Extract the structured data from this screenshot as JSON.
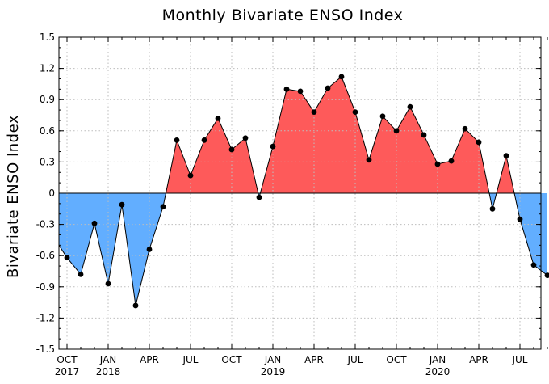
{
  "chart_data": {
    "type": "area",
    "title": "Monthly Bivariate ENSO Index",
    "ylabel": "Bivariate ENSO Index",
    "xlabel": "",
    "ylim": [
      -1.5,
      1.5
    ],
    "yticks": [
      "1.5",
      "1.2",
      "0.9",
      "0.6",
      "0.3",
      "0",
      "-0.3",
      "-0.6",
      "-0.9",
      "-1.2",
      "-1.5"
    ],
    "ytick_values": [
      1.5,
      1.2,
      0.9,
      0.6,
      0.3,
      0,
      -0.3,
      -0.6,
      -0.9,
      -1.2,
      -1.5
    ],
    "xticks": [
      {
        "month": "OCT",
        "year": "2017",
        "index": 0
      },
      {
        "month": "JAN",
        "year": "2018",
        "index": 3
      },
      {
        "month": "APR",
        "year": "",
        "index": 6
      },
      {
        "month": "JUL",
        "year": "",
        "index": 9
      },
      {
        "month": "OCT",
        "year": "",
        "index": 12
      },
      {
        "month": "JAN",
        "year": "2019",
        "index": 15
      },
      {
        "month": "APR",
        "year": "",
        "index": 18
      },
      {
        "month": "JUL",
        "year": "",
        "index": 21
      },
      {
        "month": "OCT",
        "year": "",
        "index": 24
      },
      {
        "month": "JAN",
        "year": "2020",
        "index": 27
      },
      {
        "month": "APR",
        "year": "",
        "index": 30
      },
      {
        "month": "JUL",
        "year": "",
        "index": 33
      }
    ],
    "grid": true,
    "series": [
      {
        "start_value": -0.5,
        "months": [
          "2017-10",
          "2017-11",
          "2017-12",
          "2018-01",
          "2018-02",
          "2018-03",
          "2018-04",
          "2018-05",
          "2018-06",
          "2018-07",
          "2018-08",
          "2018-09",
          "2018-10",
          "2018-11",
          "2018-12",
          "2019-01",
          "2019-02",
          "2019-03",
          "2019-04",
          "2019-05",
          "2019-06",
          "2019-07",
          "2019-08",
          "2019-09",
          "2019-10",
          "2019-11",
          "2019-12",
          "2020-01",
          "2020-02",
          "2020-03",
          "2020-04",
          "2020-05",
          "2020-06",
          "2020-07",
          "2020-08",
          "2020-09"
        ],
        "values": [
          -0.62,
          -0.78,
          -0.29,
          -0.87,
          -0.11,
          -1.08,
          -0.54,
          -0.13,
          0.51,
          0.17,
          0.51,
          0.72,
          0.42,
          0.53,
          -0.04,
          0.45,
          1.0,
          0.98,
          0.78,
          1.01,
          1.12,
          0.78,
          0.32,
          0.74,
          0.6,
          0.83,
          0.56,
          0.28,
          0.31,
          0.62,
          0.49,
          -0.15,
          0.36,
          -0.25,
          -0.69,
          -0.79
        ]
      }
    ],
    "colors": {
      "positive": "#fe5a5a",
      "negative": "#62aeff",
      "line": "#000000",
      "grid": "#bdbdbd"
    }
  }
}
